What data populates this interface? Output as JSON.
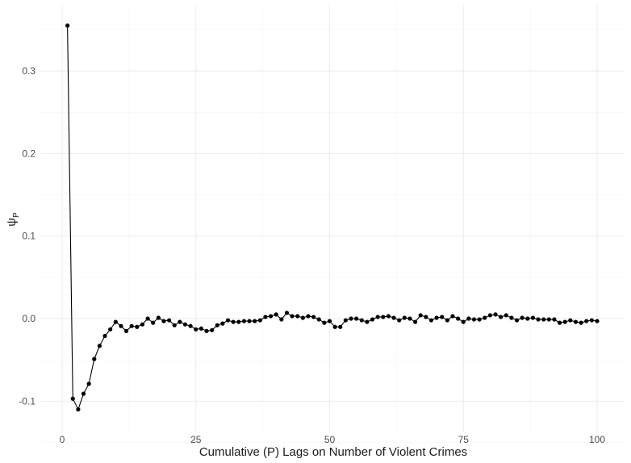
{
  "chart_data": {
    "type": "line",
    "title": "",
    "xlabel": "Cumulative (P) Lags on Number of Violent Crimes",
    "ylabel": "ψ",
    "ylabel_sub": "P",
    "xlim": [
      0,
      100
    ],
    "ylim": [
      -0.1,
      0.3
    ],
    "x_ticks": [
      0,
      25,
      50,
      75,
      100
    ],
    "y_ticks": [
      -0.1,
      0.0,
      0.1,
      0.2,
      0.3
    ],
    "x_tick_labels": [
      "0",
      "25",
      "50",
      "75",
      "100"
    ],
    "y_tick_labels": [
      "-0.1",
      "0.0",
      "0.1",
      "0.2",
      "0.3"
    ],
    "grid": true,
    "legend": "none",
    "marker": "point",
    "color": "#000000",
    "series": [
      {
        "x": [
          1,
          2,
          3,
          4,
          5,
          6,
          7,
          8,
          9,
          10,
          11,
          12,
          13,
          14,
          15,
          16,
          17,
          18,
          19,
          20,
          21,
          22,
          23,
          24,
          25,
          26,
          27,
          28,
          29,
          30,
          31,
          32,
          33,
          34,
          35,
          36,
          37,
          38,
          39,
          40,
          41,
          42,
          43,
          44,
          45,
          46,
          47,
          48,
          49,
          50,
          51,
          52,
          53,
          54,
          55,
          56,
          57,
          58,
          59,
          60,
          61,
          62,
          63,
          64,
          65,
          66,
          67,
          68,
          69,
          70,
          71,
          72,
          73,
          74,
          75,
          76,
          77,
          78,
          79,
          80,
          81,
          82,
          83,
          84,
          85,
          86,
          87,
          88,
          89,
          90,
          91,
          92,
          93,
          94,
          95,
          96,
          97,
          98,
          99,
          100
        ],
        "values": [
          0.355,
          -0.097,
          -0.11,
          -0.091,
          -0.079,
          -0.049,
          -0.033,
          -0.021,
          -0.013,
          -0.004,
          -0.009,
          -0.015,
          -0.009,
          -0.01,
          -0.007,
          0.0,
          -0.005,
          0.001,
          -0.003,
          -0.002,
          -0.008,
          -0.004,
          -0.007,
          -0.009,
          -0.013,
          -0.012,
          -0.015,
          -0.014,
          -0.008,
          -0.006,
          -0.002,
          -0.004,
          -0.004,
          -0.003,
          -0.003,
          -0.003,
          -0.002,
          0.002,
          0.003,
          0.005,
          -0.001,
          0.007,
          0.003,
          0.003,
          0.001,
          0.003,
          0.002,
          -0.001,
          -0.005,
          -0.003,
          -0.01,
          -0.01,
          -0.002,
          0.0,
          0.0,
          -0.002,
          -0.004,
          -0.001,
          0.002,
          0.002,
          0.003,
          0.001,
          -0.002,
          0.001,
          0.0,
          -0.004,
          0.004,
          0.002,
          -0.002,
          0.001,
          0.002,
          -0.002,
          0.003,
          0.0,
          -0.004,
          0.0,
          -0.001,
          -0.001,
          0.001,
          0.004,
          0.005,
          0.002,
          0.004,
          0.001,
          -0.002,
          0.001,
          0.0,
          0.001,
          -0.001,
          -0.001,
          -0.001,
          -0.001,
          -0.005,
          -0.004,
          -0.002,
          -0.004,
          -0.005,
          -0.003,
          -0.002,
          -0.003
        ]
      }
    ]
  }
}
